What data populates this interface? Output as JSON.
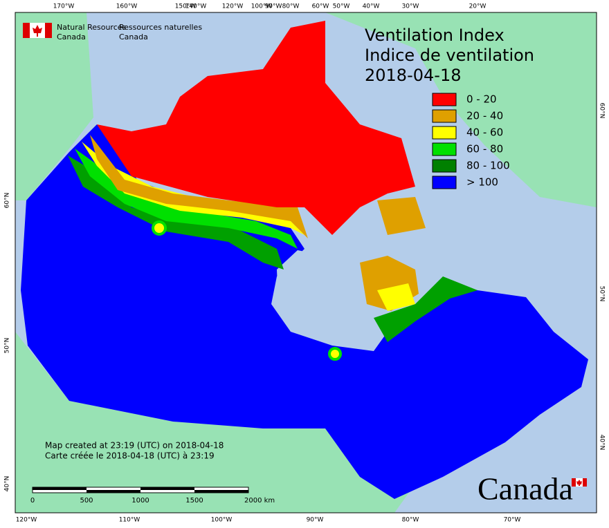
{
  "header": {
    "agency_en": [
      "Natural Resources",
      "Canada"
    ],
    "agency_fr": [
      "Ressources naturelles",
      "Canada"
    ]
  },
  "title": [
    "Ventilation Index",
    "Indice de ventilation",
    "2018-04-18"
  ],
  "legend": [
    {
      "label": "0 - 20",
      "color": "#ff0000"
    },
    {
      "label": "20 - 40",
      "color": "#dfa000"
    },
    {
      "label": "40 - 60",
      "color": "#ffff00"
    },
    {
      "label": "60 - 80",
      "color": "#00e000"
    },
    {
      "label": "80 - 100",
      "color": "#008000"
    },
    {
      "label": "> 100",
      "color": "#0000ff"
    }
  ],
  "graticule": {
    "top": [
      "170°W",
      "160°W",
      "150°W",
      "140°W",
      "120°W",
      "100°W",
      "90°W",
      "80°W",
      "60°W",
      "50°W",
      "40°W",
      "30°W",
      "20°W"
    ],
    "bottom": [
      "120°W",
      "110°W",
      "100°W",
      "90°W",
      "80°W",
      "70°W"
    ],
    "left": [
      "60°N",
      "50°N",
      "40°N"
    ],
    "right": [
      "60°N",
      "50°N",
      "40°N"
    ]
  },
  "notes": [
    "Map created at 23:19 (UTC) on 2018-04-18",
    "Carte créée le 2018-04-18 (UTC) à 23:19"
  ],
  "scale_bar": [
    "0",
    "500",
    "1000",
    "1500",
    "2000  km"
  ],
  "wordmark": "Canada"
}
